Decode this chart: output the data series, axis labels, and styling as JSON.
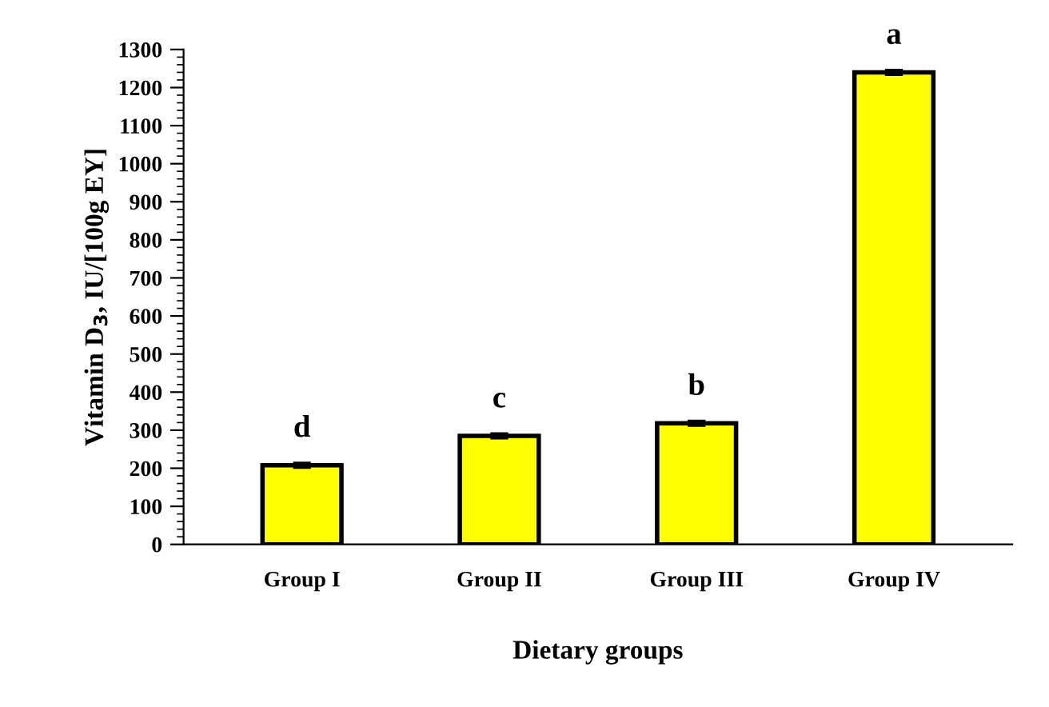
{
  "chart_data": {
    "type": "bar",
    "xlabel": "Dietary groups",
    "ylabel": "Vitamin D$_{3}$, IU/[100g EY]",
    "categories": [
      "Group I",
      "Group II",
      "Group III",
      "Group IV"
    ],
    "values": [
      208,
      285,
      318,
      1240
    ],
    "errors": [
      5,
      5,
      5,
      5
    ],
    "color": "#ffff00",
    "ylim": [
      0,
      1300
    ],
    "yticks": [
      0,
      100,
      200,
      300,
      400,
      500,
      600,
      700,
      800,
      900,
      1000,
      1100,
      1200,
      1300
    ],
    "annotations": [
      "d",
      "c",
      "b",
      "a"
    ],
    "grid": false,
    "legend": false
  }
}
